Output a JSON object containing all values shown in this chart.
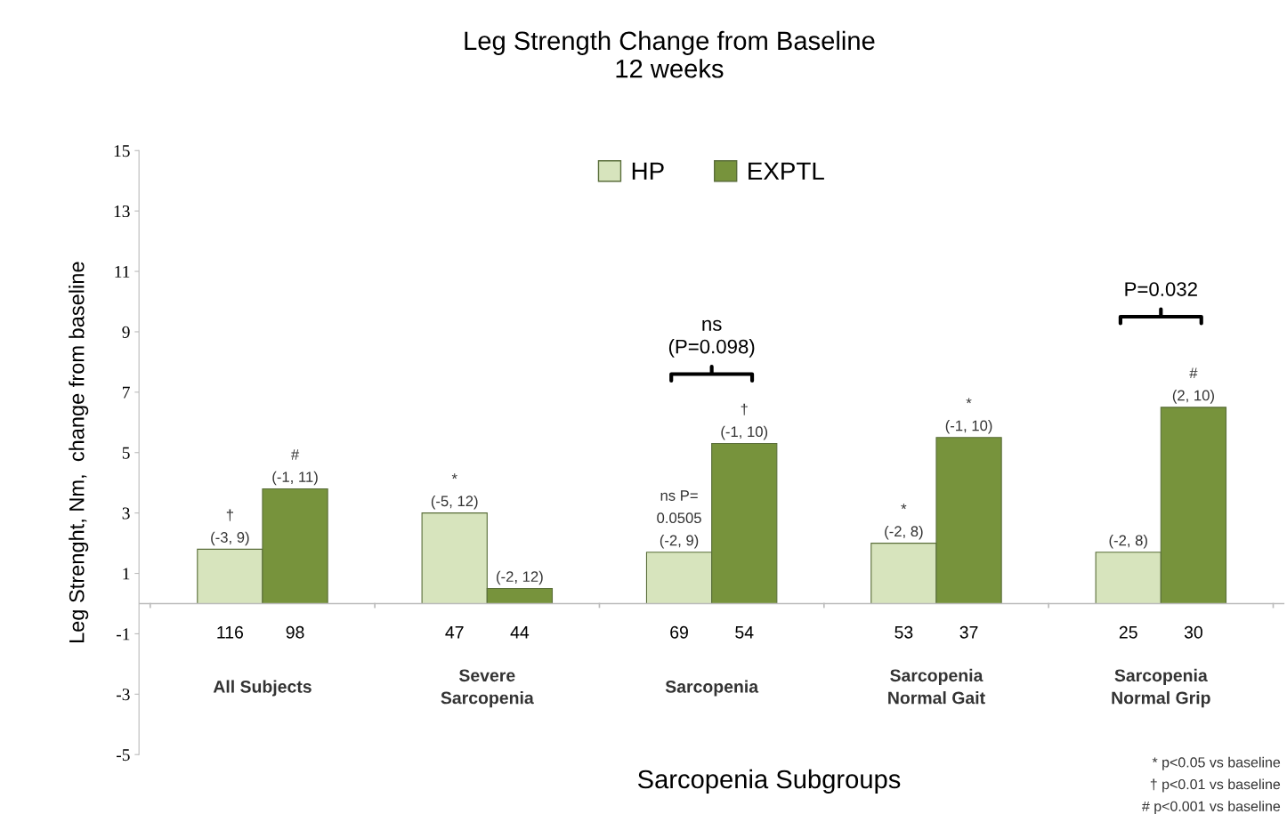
{
  "chart_data": {
    "type": "bar",
    "title": "Leg Strength Change from Baseline\n12 weeks",
    "xlabel": "Sarcopenia Subgroups",
    "ylabel": "Leg Strenght, Nm,  change from baseline",
    "categories": [
      "All Subjects",
      "Severe\nSarcopenia",
      "Sarcopenia",
      "Sarcopenia\nNormal Gait",
      "Sarcopenia\nNormal Grip"
    ],
    "series": [
      {
        "name": "HP",
        "color": "#d7e4bd",
        "values": [
          1.8,
          3.0,
          1.7,
          2.0,
          1.7
        ],
        "value_labels": [
          "†\n(-3, 9)",
          "*\n(-5, 12)",
          "ns P=\n0.0505\n(-2, 9)",
          "*\n(-2, 8)",
          "(-2, 8)"
        ]
      },
      {
        "name": "EXPTL",
        "color": "#77933c",
        "values": [
          3.8,
          0.5,
          5.3,
          5.5,
          6.5
        ],
        "value_labels": [
          "#\n(-1, 11)",
          "(-2, 12)",
          "†\n(-1, 10)",
          "*\n(-1, 10)",
          "#\n(2, 10)"
        ]
      }
    ],
    "ylim": [
      -5,
      15
    ],
    "yticks": [
      -5,
      -3,
      -1,
      1,
      3,
      5,
      7,
      9,
      11,
      13,
      15
    ],
    "grid": false,
    "legend": "top",
    "annotations": [
      "116",
      "98",
      "47",
      "44",
      "69",
      "54",
      "53",
      "37",
      "25",
      "30",
      "ns\n(P=0.098)",
      "P=0.032",
      "* p<0.05 vs baseline",
      "† p<0.01 vs baseline",
      "# p<0.001 vs baseline"
    ]
  }
}
